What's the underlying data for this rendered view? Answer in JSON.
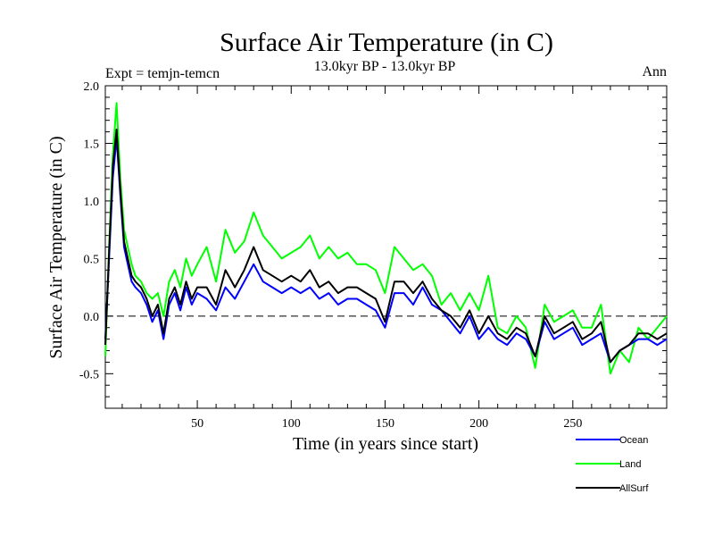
{
  "chart_data": {
    "type": "line",
    "title": "Surface Air Temperature (in C)",
    "subtitle": "13.0kyr BP - 13.0kyr BP",
    "expt_label": "Expt = temjn-temcn",
    "period_label": "Ann",
    "xlabel": "Time (in years since start)",
    "ylabel": "Surface Air Temperature (in C)",
    "xlim": [
      1,
      300
    ],
    "ylim": [
      -0.8,
      2.0
    ],
    "xticks": [
      50,
      100,
      150,
      200,
      250
    ],
    "xtick_labels": [
      "50",
      "100",
      "150",
      "200",
      "250"
    ],
    "yticks": [
      -0.5,
      0.0,
      0.5,
      1.0,
      1.5,
      2.0
    ],
    "ytick_labels": [
      "-0.5",
      "0.0",
      "0.5",
      "1.0",
      "1.5",
      "2.0"
    ],
    "zero_line": "dashed",
    "legend_position": "bottom-right",
    "series": [
      {
        "name": "Ocean",
        "color": "#0000ff",
        "x": [
          1,
          3,
          5,
          7,
          9,
          11,
          13,
          15,
          17,
          20,
          23,
          26,
          29,
          32,
          35,
          38,
          41,
          44,
          47,
          50,
          55,
          60,
          65,
          70,
          75,
          80,
          85,
          90,
          95,
          100,
          105,
          110,
          115,
          120,
          125,
          130,
          135,
          140,
          145,
          150,
          155,
          160,
          165,
          170,
          175,
          180,
          185,
          190,
          195,
          200,
          205,
          210,
          215,
          220,
          225,
          230,
          235,
          240,
          245,
          250,
          255,
          260,
          265,
          270,
          275,
          280,
          285,
          290,
          295,
          300
        ],
        "values": [
          -0.2,
          0.5,
          1.2,
          1.55,
          1.05,
          0.6,
          0.45,
          0.3,
          0.25,
          0.2,
          0.1,
          -0.05,
          0.05,
          -0.2,
          0.1,
          0.2,
          0.05,
          0.25,
          0.1,
          0.2,
          0.15,
          0.05,
          0.25,
          0.15,
          0.3,
          0.45,
          0.3,
          0.25,
          0.2,
          0.25,
          0.2,
          0.25,
          0.15,
          0.2,
          0.1,
          0.15,
          0.15,
          0.1,
          0.05,
          -0.1,
          0.2,
          0.2,
          0.1,
          0.25,
          0.1,
          0.05,
          -0.05,
          -0.15,
          0.0,
          -0.2,
          -0.1,
          -0.2,
          -0.25,
          -0.15,
          -0.2,
          -0.35,
          -0.05,
          -0.2,
          -0.15,
          -0.1,
          -0.25,
          -0.2,
          -0.15,
          -0.4,
          -0.3,
          -0.25,
          -0.2,
          -0.2,
          -0.25,
          -0.2
        ]
      },
      {
        "name": "Land",
        "color": "#00ff00",
        "x": [
          1,
          3,
          5,
          7,
          9,
          11,
          13,
          15,
          17,
          20,
          23,
          26,
          29,
          32,
          35,
          38,
          41,
          44,
          47,
          50,
          55,
          60,
          65,
          70,
          75,
          80,
          85,
          90,
          95,
          100,
          105,
          110,
          115,
          120,
          125,
          130,
          135,
          140,
          145,
          150,
          155,
          160,
          165,
          170,
          175,
          180,
          185,
          190,
          195,
          200,
          205,
          210,
          215,
          220,
          225,
          230,
          235,
          240,
          245,
          250,
          255,
          260,
          265,
          270,
          275,
          280,
          285,
          290,
          295,
          300
        ],
        "values": [
          -0.35,
          0.6,
          1.4,
          1.85,
          1.2,
          0.75,
          0.6,
          0.45,
          0.35,
          0.3,
          0.2,
          0.15,
          0.2,
          0.0,
          0.3,
          0.4,
          0.25,
          0.5,
          0.35,
          0.45,
          0.6,
          0.3,
          0.75,
          0.55,
          0.65,
          0.9,
          0.7,
          0.6,
          0.5,
          0.55,
          0.6,
          0.7,
          0.5,
          0.6,
          0.5,
          0.55,
          0.45,
          0.45,
          0.4,
          0.2,
          0.6,
          0.5,
          0.4,
          0.45,
          0.35,
          0.1,
          0.2,
          0.05,
          0.2,
          0.05,
          0.35,
          -0.1,
          -0.15,
          0.0,
          -0.1,
          -0.45,
          0.1,
          -0.05,
          0.0,
          0.05,
          -0.1,
          -0.1,
          0.1,
          -0.5,
          -0.3,
          -0.4,
          -0.1,
          -0.2,
          -0.1,
          0.0
        ]
      },
      {
        "name": "AllSurf",
        "color": "#000000",
        "x": [
          1,
          3,
          5,
          7,
          9,
          11,
          13,
          15,
          17,
          20,
          23,
          26,
          29,
          32,
          35,
          38,
          41,
          44,
          47,
          50,
          55,
          60,
          65,
          70,
          75,
          80,
          85,
          90,
          95,
          100,
          105,
          110,
          115,
          120,
          125,
          130,
          135,
          140,
          145,
          150,
          155,
          160,
          165,
          170,
          175,
          180,
          185,
          190,
          195,
          200,
          205,
          210,
          215,
          220,
          225,
          230,
          235,
          240,
          245,
          250,
          255,
          260,
          265,
          270,
          275,
          280,
          285,
          290,
          295,
          300
        ],
        "values": [
          -0.25,
          0.55,
          1.3,
          1.62,
          1.1,
          0.65,
          0.5,
          0.35,
          0.3,
          0.25,
          0.15,
          0.0,
          0.1,
          -0.15,
          0.15,
          0.25,
          0.1,
          0.3,
          0.15,
          0.25,
          0.25,
          0.1,
          0.4,
          0.25,
          0.4,
          0.6,
          0.4,
          0.35,
          0.3,
          0.35,
          0.3,
          0.4,
          0.25,
          0.3,
          0.2,
          0.25,
          0.25,
          0.2,
          0.15,
          -0.05,
          0.3,
          0.3,
          0.2,
          0.3,
          0.15,
          0.05,
          0.0,
          -0.1,
          0.05,
          -0.15,
          0.0,
          -0.15,
          -0.2,
          -0.1,
          -0.15,
          -0.35,
          0.0,
          -0.15,
          -0.1,
          -0.05,
          -0.2,
          -0.15,
          -0.05,
          -0.4,
          -0.3,
          -0.25,
          -0.15,
          -0.15,
          -0.2,
          -0.15
        ]
      }
    ]
  }
}
